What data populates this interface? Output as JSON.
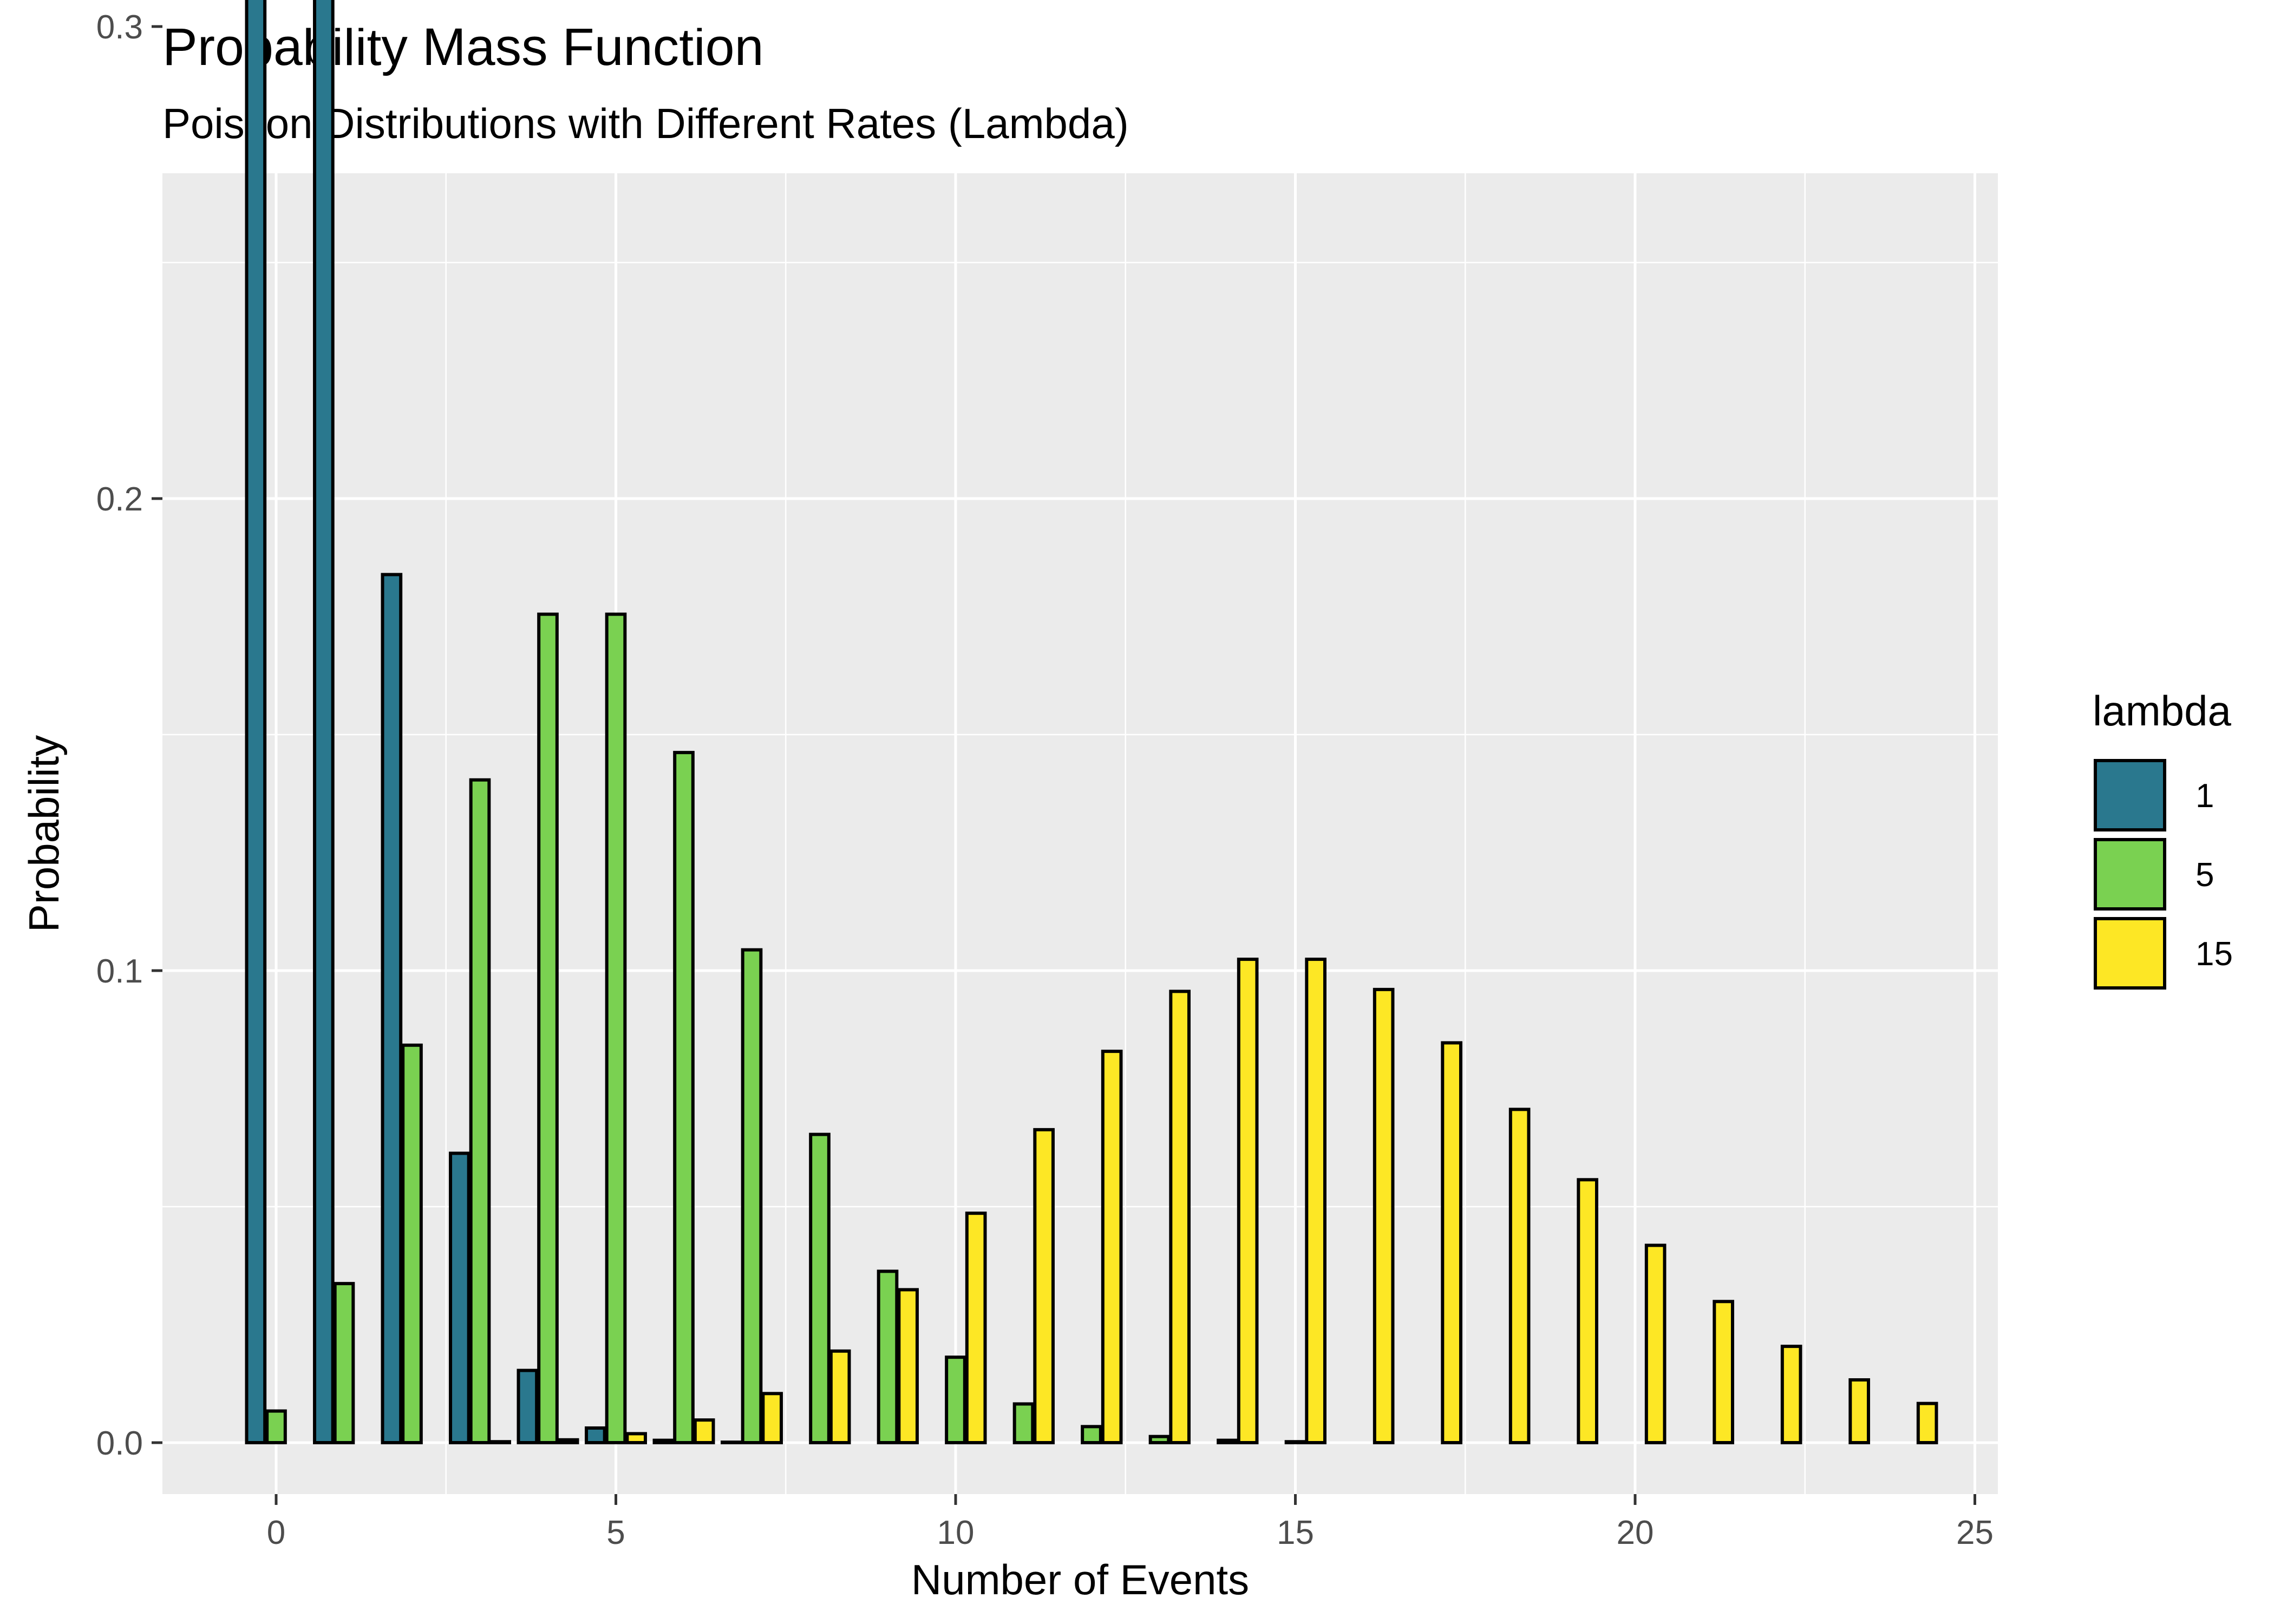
{
  "chart_data": {
    "type": "bar",
    "title": "Probability Mass Function",
    "subtitle": "Poisson Distributions with Different Rates (Lambda)",
    "xlabel": "Number of Events",
    "ylabel": "Probability",
    "xlim": [
      -0.5,
      25.5
    ],
    "ylim": [
      0,
      0.368
    ],
    "x_ticks": [
      0,
      5,
      10,
      15,
      20,
      25
    ],
    "x_tick_labels": [
      "0",
      "5",
      "10",
      "15",
      "20",
      "25"
    ],
    "y_ticks": [
      0,
      0.1,
      0.2,
      0.3
    ],
    "y_tick_labels": [
      "0.0",
      "0.1",
      "0.2",
      "0.3"
    ],
    "grid": true,
    "legend_title": "lambda",
    "legend_position": "right",
    "x": [
      0,
      1,
      2,
      3,
      4,
      5,
      6,
      7,
      8,
      9,
      10,
      11,
      12,
      13,
      14,
      15,
      16,
      17,
      18,
      19,
      20,
      21,
      22,
      23,
      24
    ],
    "series": [
      {
        "name": "1",
        "color": "#2a788e",
        "values": [
          0.3679,
          0.3679,
          0.1839,
          0.0613,
          0.0153,
          0.0031,
          0.0005,
          0.0001,
          0,
          0,
          0,
          0,
          0,
          0,
          0,
          0,
          0,
          0,
          0,
          0,
          0,
          0,
          0,
          0,
          0
        ]
      },
      {
        "name": "5",
        "color": "#7ad151",
        "values": [
          0.0067,
          0.0337,
          0.0842,
          0.1404,
          0.1755,
          0.1755,
          0.1462,
          0.1044,
          0.0653,
          0.0363,
          0.0181,
          0.0082,
          0.0034,
          0.0013,
          0.0005,
          0.0002,
          0,
          0,
          0,
          0,
          0,
          0,
          0,
          0,
          0
        ]
      },
      {
        "name": "15",
        "color": "#fde725",
        "values": [
          0,
          0,
          0,
          0.0002,
          0.0006,
          0.0019,
          0.0048,
          0.0104,
          0.0194,
          0.0324,
          0.0486,
          0.0663,
          0.0829,
          0.0956,
          0.1024,
          0.1024,
          0.096,
          0.0847,
          0.0706,
          0.0557,
          0.0418,
          0.0299,
          0.0204,
          0.0133,
          0.0083
        ]
      }
    ]
  }
}
